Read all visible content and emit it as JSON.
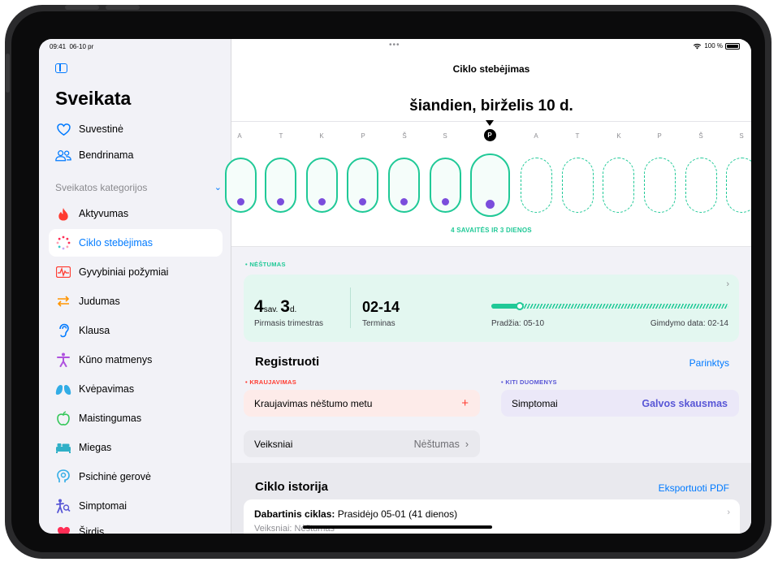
{
  "status_bar": {
    "time": "09:41",
    "date": "06-10 pr",
    "battery": "100 %"
  },
  "sidebar": {
    "title": "Sveikata",
    "top_items": [
      {
        "label": "Suvestinė",
        "icon": "heart-outline-icon"
      },
      {
        "label": "Bendrinama",
        "icon": "people-icon"
      }
    ],
    "section_label": "Sveikatos kategorijos",
    "categories": [
      {
        "label": "Aktyvumas",
        "icon": "flame-icon",
        "color": "#ff3b30"
      },
      {
        "label": "Ciklo stebėjimas",
        "icon": "cycle-icon",
        "color": "#ff2d55",
        "selected": true
      },
      {
        "label": "Gyvybiniai požymiai",
        "icon": "vitals-icon",
        "color": "#ff3b30"
      },
      {
        "label": "Judumas",
        "icon": "mobility-icon",
        "color": "#ff9500"
      },
      {
        "label": "Klausa",
        "icon": "ear-icon",
        "color": "#007aff"
      },
      {
        "label": "Kūno matmenys",
        "icon": "body-icon",
        "color": "#af52de"
      },
      {
        "label": "Kvėpavimas",
        "icon": "lungs-icon",
        "color": "#32ade6"
      },
      {
        "label": "Maistingumas",
        "icon": "apple-icon",
        "color": "#34c759"
      },
      {
        "label": "Miegas",
        "icon": "bed-icon",
        "color": "#30b0c7"
      },
      {
        "label": "Psichinė gerovė",
        "icon": "mind-icon",
        "color": "#32ade6"
      },
      {
        "label": "Simptomai",
        "icon": "symptoms-icon",
        "color": "#5856d6"
      },
      {
        "label": "Širdis",
        "icon": "heart-filled-icon",
        "color": "#ff2d55"
      }
    ]
  },
  "main": {
    "nav_title": "Ciklo stebėjimas",
    "date_title": "šiandien, birželis 10 d.",
    "day_letters": [
      "A",
      "T",
      "K",
      "P",
      "Š",
      "S",
      "P",
      "A",
      "T",
      "K",
      "P",
      "Š",
      "S"
    ],
    "today_index": 6,
    "weeks_label": "4 SAVAITĖS IR 3 DIENOS",
    "pregnancy": {
      "section_label": "NĖŠTUMAS",
      "weeks": "4",
      "weeks_unit": "sav.",
      "days": "3",
      "days_unit": "d.",
      "trimester": "Pirmasis trimestras",
      "due_value": "02-14",
      "due_label": "Terminas",
      "start_label": "Pradžia: 05-10",
      "birth_label": "Gimdymo data: 02-14",
      "progress_fraction": 0.12
    },
    "log": {
      "title": "Registruoti",
      "options": "Parinktys",
      "bleeding_category": "KRAUJAVIMAS",
      "bleeding_item": "Kraujavimas nėštumo metu",
      "plus": "+",
      "other_category": "KITI DUOMENYS",
      "symptoms_label": "Simptomai",
      "symptoms_value": "Galvos skausmas",
      "factors_label": "Veiksniai",
      "factors_value": "Nėštumas"
    },
    "history": {
      "title": "Ciklo istorija",
      "export": "Eksportuoti PDF",
      "current_bold": "Dabartinis ciklas:",
      "current_text": "Prasidėjo 05-01 (41 dienos)",
      "factors_line": "Veiksniai: Nėštumas"
    }
  }
}
